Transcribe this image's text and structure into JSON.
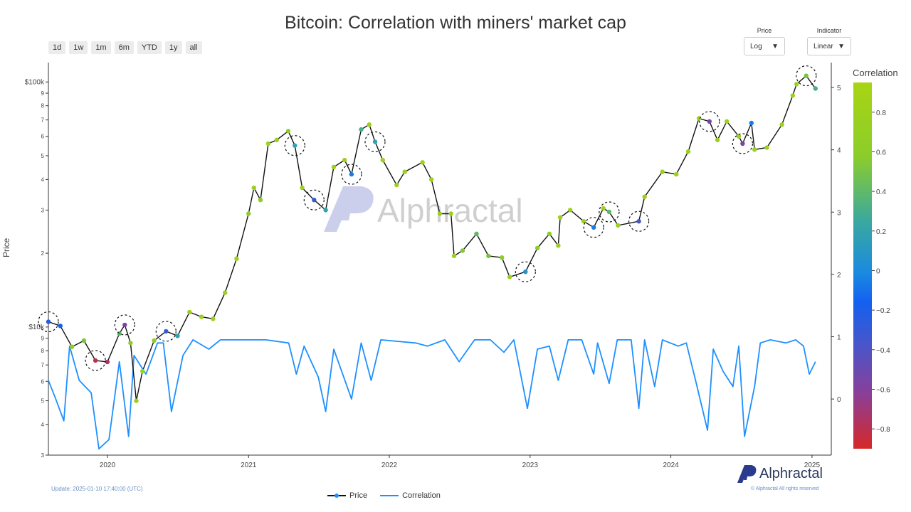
{
  "title": "Bitcoin: Correlation with miners' market cap",
  "range_buttons": [
    "1d",
    "1w",
    "1m",
    "6m",
    "YTD",
    "1y",
    "all"
  ],
  "controls": {
    "price": {
      "label": "Price",
      "value": "Log"
    },
    "indicator": {
      "label": "Indicator",
      "value": "Linear"
    }
  },
  "colorbar": {
    "title": "Correlation",
    "ticks": [
      "0.8",
      "0.6",
      "0.4",
      "0.2",
      "0",
      "−0.2",
      "−0.4",
      "−0.6",
      "−0.8"
    ],
    "colors": [
      "#9acd1a",
      "#78c24a",
      "#3fa8a8",
      "#1e8fd8",
      "#1565e8",
      "#3f5bd0",
      "#6a4ab8",
      "#a03a7a",
      "#d42a2a"
    ]
  },
  "footer": {
    "update": "Update: 2025-01-10 17:40:00 (UTC)",
    "copyright": "© Alphractal All rights reserved"
  },
  "brand": "Alphractal",
  "watermark": "Alphractal",
  "legend": [
    "Price",
    "Correlation"
  ],
  "chart_data": {
    "type": "line",
    "title": "Bitcoin: Correlation with miners' market cap",
    "ylabel": "Price",
    "x_ticks": [
      "2020",
      "2021",
      "2022",
      "2023",
      "2024",
      "2025"
    ],
    "y_left_ticks": [
      "$100k",
      "9",
      "8",
      "7",
      "6",
      "5",
      "4",
      "3",
      "2",
      "$10k",
      "9",
      "8",
      "7",
      "6",
      "5",
      "4",
      "3"
    ],
    "y_right_ticks": [
      "5",
      "4",
      "3",
      "2",
      "1",
      "0"
    ],
    "y_left_scale": "log",
    "y_left_range": [
      3000,
      120000
    ],
    "y_right_range": [
      -0.9,
      5.4
    ],
    "series": [
      {
        "name": "Price",
        "color_by": "Correlation",
        "points": [
          [
            "2019-08-01",
            10500,
            -0.1
          ],
          [
            "2019-09-01",
            10100,
            0.0
          ],
          [
            "2019-10-01",
            8300,
            0.8
          ],
          [
            "2019-11-01",
            8800,
            0.6
          ],
          [
            "2019-12-01",
            7300,
            -0.8
          ],
          [
            "2020-01-01",
            7200,
            -0.7
          ],
          [
            "2020-02-01",
            9400,
            0.5
          ],
          [
            "2020-02-15",
            10200,
            -0.5
          ],
          [
            "2020-03-01",
            8600,
            0.8
          ],
          [
            "2020-03-16",
            5000,
            0.9
          ],
          [
            "2020-04-01",
            6600,
            0.9
          ],
          [
            "2020-05-01",
            8800,
            0.8
          ],
          [
            "2020-06-01",
            9600,
            -0.2
          ],
          [
            "2020-07-01",
            9200,
            0.3
          ],
          [
            "2020-08-01",
            11500,
            0.9
          ],
          [
            "2020-09-01",
            11000,
            0.9
          ],
          [
            "2020-10-01",
            10800,
            0.9
          ],
          [
            "2020-11-01",
            13800,
            0.9
          ],
          [
            "2020-12-01",
            19000,
            0.9
          ],
          [
            "2021-01-01",
            29000,
            0.8
          ],
          [
            "2021-01-15",
            37000,
            0.9
          ],
          [
            "2021-02-01",
            33000,
            0.8
          ],
          [
            "2021-02-21",
            56000,
            0.9
          ],
          [
            "2021-03-15",
            58000,
            0.9
          ],
          [
            "2021-04-14",
            63000,
            0.8
          ],
          [
            "2021-05-01",
            55000,
            0.3
          ],
          [
            "2021-05-20",
            37000,
            0.9
          ],
          [
            "2021-06-20",
            33000,
            -0.2
          ],
          [
            "2021-07-20",
            30000,
            0.3
          ],
          [
            "2021-08-10",
            45000,
            0.9
          ],
          [
            "2021-09-07",
            48000,
            0.9
          ],
          [
            "2021-09-25",
            42000,
            0.1
          ],
          [
            "2021-10-20",
            64000,
            0.4
          ],
          [
            "2021-11-10",
            67000,
            0.9
          ],
          [
            "2021-11-25",
            57000,
            0.3
          ],
          [
            "2021-12-15",
            48000,
            0.9
          ],
          [
            "2022-01-20",
            38000,
            0.9
          ],
          [
            "2022-02-10",
            43000,
            0.9
          ],
          [
            "2022-03-28",
            47000,
            0.9
          ],
          [
            "2022-04-20",
            40000,
            0.9
          ],
          [
            "2022-05-12",
            29000,
            0.9
          ],
          [
            "2022-06-10",
            29000,
            0.9
          ],
          [
            "2022-06-18",
            19500,
            0.9
          ],
          [
            "2022-07-10",
            20500,
            0.7
          ],
          [
            "2022-08-15",
            24000,
            0.5
          ],
          [
            "2022-09-15",
            19500,
            0.6
          ],
          [
            "2022-10-20",
            19200,
            0.8
          ],
          [
            "2022-11-09",
            16000,
            0.9
          ],
          [
            "2022-12-20",
            16800,
            0.2
          ],
          [
            "2023-01-20",
            21000,
            0.8
          ],
          [
            "2023-02-20",
            24000,
            0.8
          ],
          [
            "2023-03-15",
            21500,
            0.9
          ],
          [
            "2023-03-20",
            28000,
            0.9
          ],
          [
            "2023-04-15",
            30000,
            0.9
          ],
          [
            "2023-05-20",
            27000,
            0.9
          ],
          [
            "2023-06-15",
            25500,
            0.1
          ],
          [
            "2023-07-10",
            30500,
            0.9
          ],
          [
            "2023-07-25",
            29500,
            0.5
          ],
          [
            "2023-08-17",
            26000,
            0.9
          ],
          [
            "2023-10-10",
            27000,
            -0.3
          ],
          [
            "2023-10-25",
            34000,
            0.9
          ],
          [
            "2023-12-10",
            43000,
            0.9
          ],
          [
            "2024-01-15",
            42000,
            0.9
          ],
          [
            "2024-02-15",
            52000,
            0.9
          ],
          [
            "2024-03-14",
            71000,
            0.9
          ],
          [
            "2024-04-10",
            69000,
            -0.5
          ],
          [
            "2024-05-01",
            58000,
            0.9
          ],
          [
            "2024-05-25",
            69000,
            0.9
          ],
          [
            "2024-06-25",
            60000,
            0.9
          ],
          [
            "2024-07-05",
            56000,
            -0.5
          ],
          [
            "2024-07-28",
            68000,
            0.1
          ],
          [
            "2024-08-05",
            53000,
            0.9
          ],
          [
            "2024-09-06",
            54000,
            0.9
          ],
          [
            "2024-10-15",
            67000,
            0.9
          ],
          [
            "2024-11-12",
            88000,
            0.9
          ],
          [
            "2024-11-22",
            98000,
            0.9
          ],
          [
            "2024-12-17",
            106000,
            0.6
          ],
          [
            "2025-01-10",
            94000,
            0.4
          ]
        ]
      },
      {
        "name": "Correlation",
        "color": "#1e90ff",
        "points": [
          [
            "2019-08-01",
            0.3
          ],
          [
            "2019-08-20",
            0.0
          ],
          [
            "2019-09-10",
            -0.35
          ],
          [
            "2019-09-25",
            0.85
          ],
          [
            "2019-10-20",
            0.3
          ],
          [
            "2019-11-20",
            0.1
          ],
          [
            "2019-12-10",
            -0.8
          ],
          [
            "2020-01-05",
            -0.65
          ],
          [
            "2020-02-01",
            0.6
          ],
          [
            "2020-02-25",
            -0.6
          ],
          [
            "2020-03-10",
            0.7
          ],
          [
            "2020-04-10",
            0.4
          ],
          [
            "2020-05-10",
            0.9
          ],
          [
            "2020-05-25",
            0.9
          ],
          [
            "2020-06-15",
            -0.2
          ],
          [
            "2020-07-15",
            0.7
          ],
          [
            "2020-08-10",
            0.95
          ],
          [
            "2020-09-20",
            0.8
          ],
          [
            "2020-10-20",
            0.95
          ],
          [
            "2020-12-20",
            0.95
          ],
          [
            "2021-02-15",
            0.95
          ],
          [
            "2021-04-15",
            0.9
          ],
          [
            "2021-05-05",
            0.4
          ],
          [
            "2021-05-25",
            0.85
          ],
          [
            "2021-07-01",
            0.35
          ],
          [
            "2021-07-20",
            -0.2
          ],
          [
            "2021-08-10",
            0.8
          ],
          [
            "2021-09-25",
            0.0
          ],
          [
            "2021-10-20",
            0.9
          ],
          [
            "2021-11-15",
            0.3
          ],
          [
            "2021-12-10",
            0.95
          ],
          [
            "2022-03-10",
            0.9
          ],
          [
            "2022-04-10",
            0.85
          ],
          [
            "2022-05-25",
            0.95
          ],
          [
            "2022-07-01",
            0.6
          ],
          [
            "2022-08-10",
            0.95
          ],
          [
            "2022-09-20",
            0.95
          ],
          [
            "2022-10-25",
            0.75
          ],
          [
            "2022-11-20",
            0.95
          ],
          [
            "2022-12-25",
            -0.15
          ],
          [
            "2023-01-20",
            0.8
          ],
          [
            "2023-02-20",
            0.85
          ],
          [
            "2023-03-15",
            0.3
          ],
          [
            "2023-04-10",
            0.95
          ],
          [
            "2023-05-15",
            0.95
          ],
          [
            "2023-06-15",
            0.4
          ],
          [
            "2023-06-25",
            0.9
          ],
          [
            "2023-07-25",
            0.25
          ],
          [
            "2023-08-15",
            0.95
          ],
          [
            "2023-09-20",
            0.95
          ],
          [
            "2023-10-10",
            -0.15
          ],
          [
            "2023-10-25",
            0.95
          ],
          [
            "2023-11-20",
            0.2
          ],
          [
            "2023-12-10",
            0.95
          ],
          [
            "2024-01-20",
            0.85
          ],
          [
            "2024-02-10",
            0.9
          ],
          [
            "2024-03-05",
            0.3
          ],
          [
            "2024-04-05",
            -0.5
          ],
          [
            "2024-04-20",
            0.8
          ],
          [
            "2024-05-15",
            0.45
          ],
          [
            "2024-06-10",
            0.2
          ],
          [
            "2024-06-25",
            0.85
          ],
          [
            "2024-07-10",
            -0.6
          ],
          [
            "2024-08-05",
            0.2
          ],
          [
            "2024-08-20",
            0.9
          ],
          [
            "2024-09-15",
            0.95
          ],
          [
            "2024-10-25",
            0.9
          ],
          [
            "2024-11-20",
            0.95
          ],
          [
            "2024-12-10",
            0.85
          ],
          [
            "2024-12-25",
            0.4
          ],
          [
            "2025-01-10",
            0.6
          ]
        ]
      }
    ],
    "annotations": "dashed circles highlight periods of negative / low correlation"
  }
}
